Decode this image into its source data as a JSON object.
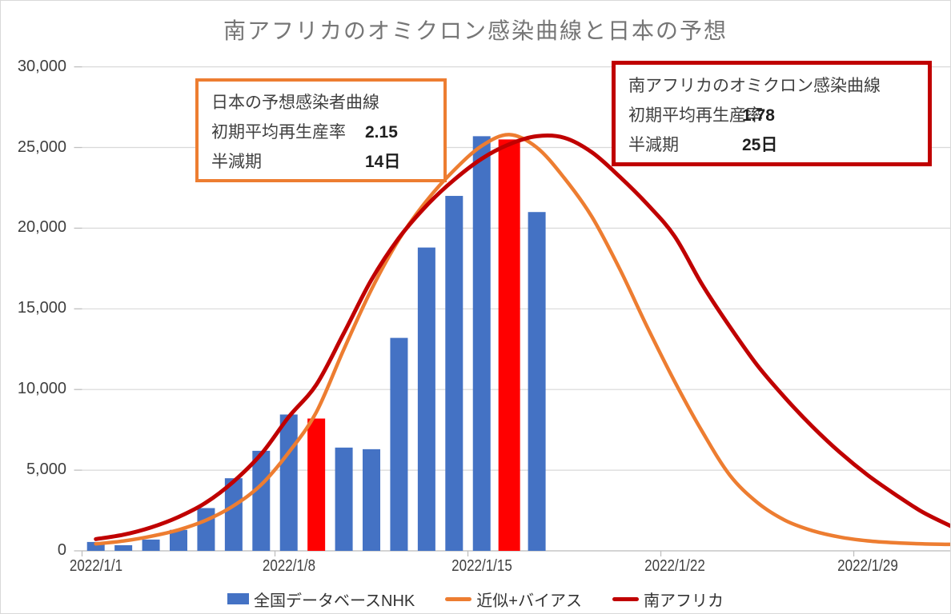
{
  "title": "南アフリカのオミクロン感染曲線と日本の予想",
  "colors": {
    "bar_blue": "#4472C4",
    "highlight_red": "#FF0000",
    "line_orange": "#ED7D31",
    "line_dark_red": "#C00000",
    "gridline": "#D9D9D9",
    "axis_line": "#BFBFBF",
    "title_text": "#767676",
    "axis_text": "#3F3F3F"
  },
  "axes": {
    "y": {
      "ticks": [
        {
          "label": "30,000",
          "value": 30000
        },
        {
          "label": "25,000",
          "value": 25000
        },
        {
          "label": "20,000",
          "value": 20000
        },
        {
          "label": "15,000",
          "value": 15000
        },
        {
          "label": "10,000",
          "value": 10000
        },
        {
          "label": "5,000",
          "value": 5000
        },
        {
          "label": "0",
          "value": 0
        }
      ]
    },
    "x": {
      "ticks": [
        {
          "label": "2022/1/1",
          "day": 1
        },
        {
          "label": "2022/1/8",
          "day": 8
        },
        {
          "label": "2022/1/15",
          "day": 15
        },
        {
          "label": "2022/1/22",
          "day": 22
        },
        {
          "label": "2022/1/29",
          "day": 29
        }
      ]
    }
  },
  "annotations": {
    "japan": {
      "title": "日本の予想感染者曲線",
      "rows": [
        {
          "label": "初期平均再生産率",
          "value": "2.15"
        },
        {
          "label": "半減期",
          "value": "14日"
        }
      ]
    },
    "south_africa": {
      "title": "南アフリカのオミクロン感染曲線",
      "rows": [
        {
          "label": "初期平均再生産率",
          "value": "1.78"
        },
        {
          "label": "半減期",
          "value": "25日"
        }
      ]
    }
  },
  "legend": {
    "items": [
      {
        "label": "全国データベースNHK",
        "marker": "rect",
        "color": "#4472C4"
      },
      {
        "label": "近似+バイアス",
        "marker": "line",
        "color": "#ED7D31"
      },
      {
        "label": "南アフリカ",
        "marker": "line",
        "color": "#C00000"
      }
    ]
  },
  "chart_data": {
    "type": "combo-bar-line",
    "title": "南アフリカのオミクロン感染曲線と日本の予想",
    "categories": [
      "2022/1/1",
      "2022/1/2",
      "2022/1/3",
      "2022/1/4",
      "2022/1/5",
      "2022/1/6",
      "2022/1/7",
      "2022/1/8",
      "2022/1/9",
      "2022/1/10",
      "2022/1/11",
      "2022/1/12",
      "2022/1/13",
      "2022/1/14",
      "2022/1/15",
      "2022/1/16",
      "2022/1/17",
      "2022/1/18",
      "2022/1/19",
      "2022/1/20",
      "2022/1/21",
      "2022/1/22",
      "2022/1/23",
      "2022/1/24",
      "2022/1/25",
      "2022/1/26",
      "2022/1/27",
      "2022/1/28",
      "2022/1/29",
      "2022/1/30",
      "2022/1/31",
      "2022/2/1"
    ],
    "bars": {
      "name": "全国データベースNHK",
      "color": "#4472C4",
      "highlight_color": "#FF0000",
      "highlight_indices": [
        8,
        15
      ],
      "values": [
        550,
        350,
        700,
        1300,
        2650,
        4500,
        6200,
        8450,
        8200,
        6400,
        6300,
        13200,
        18800,
        22000,
        25700,
        25500,
        21000
      ]
    },
    "series": [
      {
        "name": "近似+バイアス",
        "color": "#ED7D31",
        "values": [
          430,
          610,
          900,
          1300,
          1900,
          2800,
          4100,
          6100,
          8600,
          12500,
          16200,
          19300,
          21700,
          23600,
          25100,
          25800,
          25000,
          23100,
          20700,
          17500,
          13900,
          10500,
          7400,
          4700,
          3000,
          1900,
          1250,
          850,
          620,
          500,
          430,
          400
        ]
      },
      {
        "name": "南アフリカ",
        "color": "#C00000",
        "values": [
          730,
          1000,
          1450,
          2100,
          3000,
          4300,
          6000,
          8300,
          10300,
          13500,
          16800,
          19400,
          21400,
          23000,
          24300,
          25200,
          25700,
          25600,
          24700,
          23200,
          21500,
          19500,
          16500,
          13900,
          11500,
          9500,
          7700,
          6100,
          4700,
          3500,
          2400,
          1550
        ]
      }
    ],
    "ylim": [
      0,
      30000
    ],
    "ytick_interval": 5000,
    "grid": true,
    "legend_position": "bottom"
  }
}
